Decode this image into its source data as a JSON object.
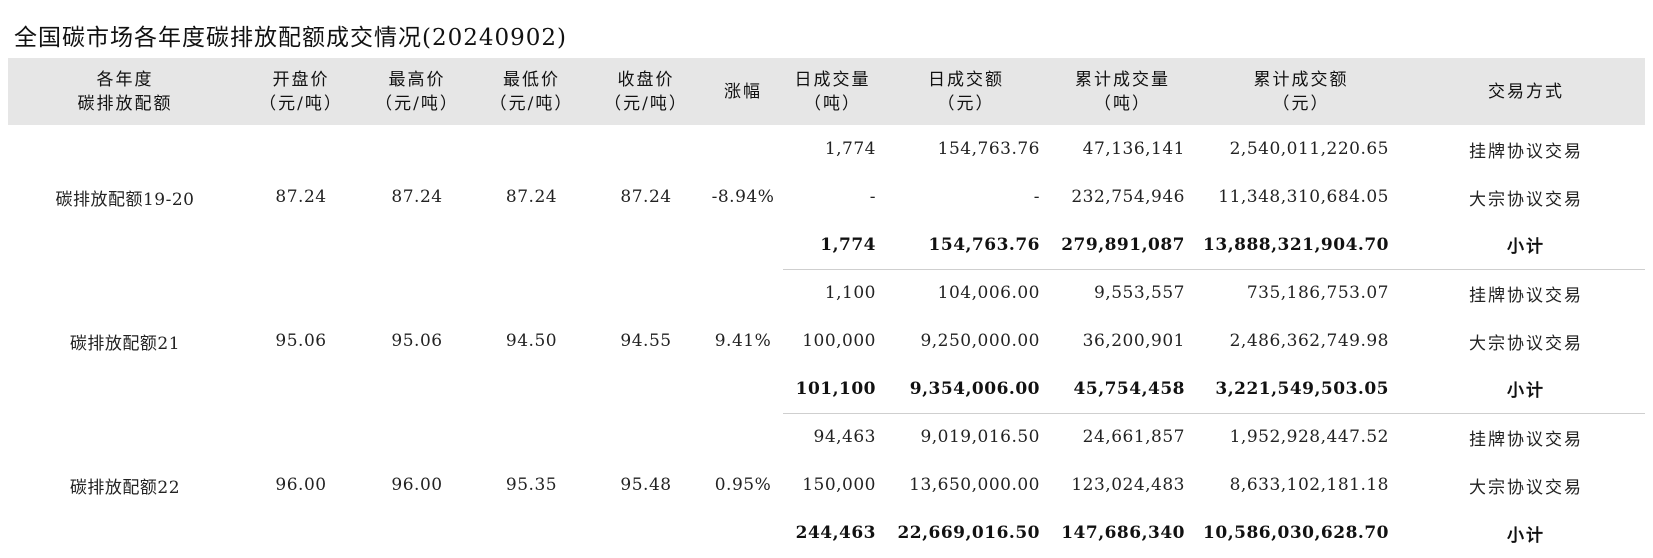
{
  "title": "全国碳市场各年度碳排放配额成交情况(20240902)",
  "headers": {
    "name": [
      "各年度",
      "碳排放配额"
    ],
    "open": [
      "开盘价",
      "（元/吨）"
    ],
    "high": [
      "最高价",
      "（元/吨）"
    ],
    "low": [
      "最低价",
      "（元/吨）"
    ],
    "close": [
      "收盘价",
      "（元/吨）"
    ],
    "change": [
      "涨幅"
    ],
    "day_volume": [
      "日成交量",
      "（吨）"
    ],
    "day_amount": [
      "日成交额",
      "（元）"
    ],
    "cum_volume": [
      "累计成交量",
      "（吨）"
    ],
    "cum_amount": [
      "累计成交额",
      "（元）"
    ],
    "mode": [
      "交易方式"
    ]
  },
  "groups": [
    {
      "name": "碳排放配额19-20",
      "open": "87.24",
      "high": "87.24",
      "low": "87.24",
      "close": "87.24",
      "change": "-8.94%",
      "rows": [
        {
          "day_volume": "1,774",
          "day_amount": "154,763.76",
          "cum_volume": "47,136,141",
          "cum_amount": "2,540,011,220.65",
          "mode": "挂牌协议交易"
        },
        {
          "day_volume": "-",
          "day_amount": "-",
          "cum_volume": "232,754,946",
          "cum_amount": "11,348,310,684.05",
          "mode": "大宗协议交易"
        },
        {
          "day_volume": "1,774",
          "day_amount": "154,763.76",
          "cum_volume": "279,891,087",
          "cum_amount": "13,888,321,904.70",
          "mode": "小计"
        }
      ]
    },
    {
      "name": "碳排放配额21",
      "open": "95.06",
      "high": "95.06",
      "low": "94.50",
      "close": "94.55",
      "change": "9.41%",
      "rows": [
        {
          "day_volume": "1,100",
          "day_amount": "104,006.00",
          "cum_volume": "9,553,557",
          "cum_amount": "735,186,753.07",
          "mode": "挂牌协议交易"
        },
        {
          "day_volume": "100,000",
          "day_amount": "9,250,000.00",
          "cum_volume": "36,200,901",
          "cum_amount": "2,486,362,749.98",
          "mode": "大宗协议交易"
        },
        {
          "day_volume": "101,100",
          "day_amount": "9,354,006.00",
          "cum_volume": "45,754,458",
          "cum_amount": "3,221,549,503.05",
          "mode": "小计"
        }
      ]
    },
    {
      "name": "碳排放配额22",
      "open": "96.00",
      "high": "96.00",
      "low": "95.35",
      "close": "95.48",
      "change": "0.95%",
      "rows": [
        {
          "day_volume": "94,463",
          "day_amount": "9,019,016.50",
          "cum_volume": "24,661,857",
          "cum_amount": "1,952,928,447.52",
          "mode": "挂牌协议交易"
        },
        {
          "day_volume": "150,000",
          "day_amount": "13,650,000.00",
          "cum_volume": "123,024,483",
          "cum_amount": "8,633,102,181.18",
          "mode": "大宗协议交易"
        },
        {
          "day_volume": "244,463",
          "day_amount": "22,669,016.50",
          "cum_volume": "147,686,340",
          "cum_amount": "10,586,030,628.70",
          "mode": "小计"
        }
      ]
    }
  ]
}
